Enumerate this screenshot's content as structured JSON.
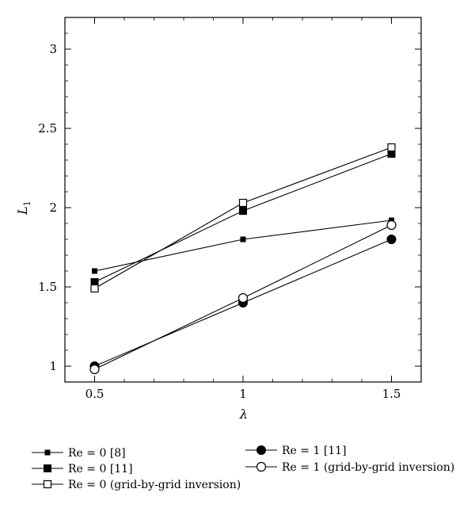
{
  "chart_data": {
    "type": "line",
    "title": "",
    "xlabel": "λ",
    "ylabel": "L",
    "ylabel_sub": "1",
    "xlim": [
      0.4,
      1.6
    ],
    "ylim": [
      0.9,
      3.2
    ],
    "xticks": [
      0.5,
      1,
      1.5
    ],
    "xtick_labels": [
      "0.5",
      "1",
      "1.5"
    ],
    "yticks": [
      1,
      1.5,
      2,
      2.5,
      3
    ],
    "ytick_labels": [
      "1",
      "1.5",
      "2",
      "2.5",
      "3"
    ],
    "grid": false,
    "legend_position": "bottom",
    "x": [
      0.5,
      1,
      1.5
    ],
    "series": [
      {
        "name": "Re = 0 [8]",
        "marker": "small-filled-square",
        "values": [
          1.6,
          1.8,
          1.92
        ]
      },
      {
        "name": "Re = 0 [11]",
        "marker": "filled-square",
        "values": [
          1.53,
          1.98,
          2.34
        ]
      },
      {
        "name": "Re = 0 (grid-by-grid inversion)",
        "marker": "open-square",
        "values": [
          1.49,
          2.03,
          2.38
        ]
      },
      {
        "name": "Re = 1 [11]",
        "marker": "filled-circle",
        "values": [
          1.0,
          1.4,
          1.8
        ]
      },
      {
        "name": "Re = 1 (grid-by-grid inversion)",
        "marker": "open-circle",
        "values": [
          0.98,
          1.43,
          1.89
        ]
      }
    ]
  },
  "colors": {
    "line": "#000000",
    "background": "#ffffff"
  }
}
